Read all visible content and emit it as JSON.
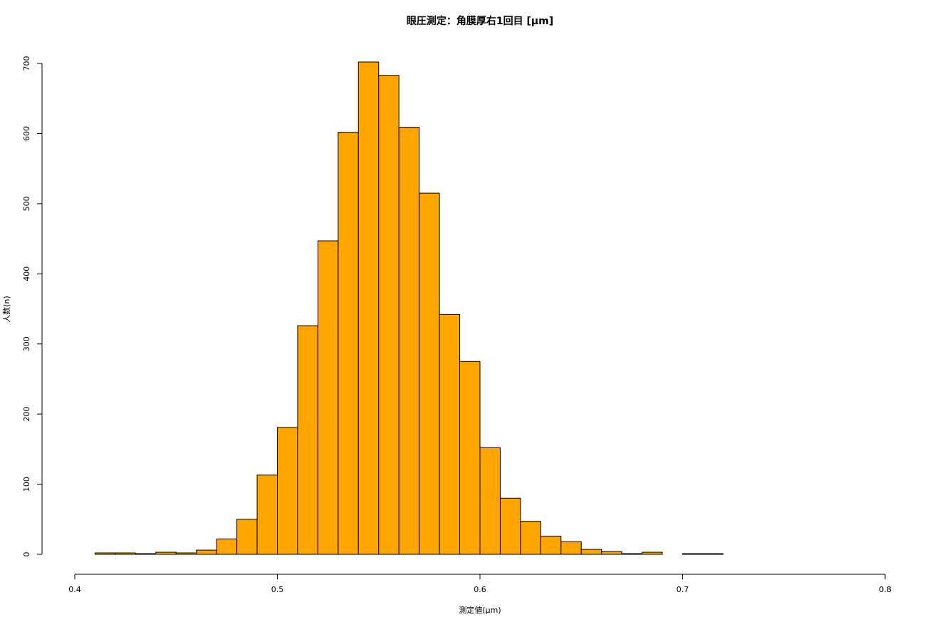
{
  "chart_data": {
    "type": "histogram",
    "title": "眼圧測定：角膜厚右1回目 [µm]",
    "x_label": "測定値(µm)",
    "y_label": "人数(n)",
    "bins": [
      0.41,
      0.42,
      0.43,
      0.44,
      0.45,
      0.46,
      0.47,
      0.48,
      0.49,
      0.5,
      0.51,
      0.52,
      0.53,
      0.54,
      0.55,
      0.56,
      0.57,
      0.58,
      0.59,
      0.6,
      0.61,
      0.62,
      0.63,
      0.64,
      0.65,
      0.66,
      0.67,
      0.68,
      0.69,
      0.7,
      0.71,
      0.72
    ],
    "values": [
      2,
      2,
      1,
      3,
      2,
      6,
      22,
      50,
      113,
      181,
      326,
      447,
      602,
      702,
      683,
      609,
      515,
      342,
      275,
      152,
      80,
      47,
      26,
      18,
      7,
      4,
      1,
      3,
      0,
      1,
      1
    ],
    "color": "#ffa500",
    "xlim": [
      0.4,
      0.8
    ],
    "xticks": [
      0.4,
      0.5,
      0.6,
      0.7,
      0.8
    ],
    "ylim": [
      0,
      700
    ],
    "yticks": [
      0,
      100,
      200,
      300,
      400,
      500,
      600,
      700
    ],
    "grid": false
  }
}
